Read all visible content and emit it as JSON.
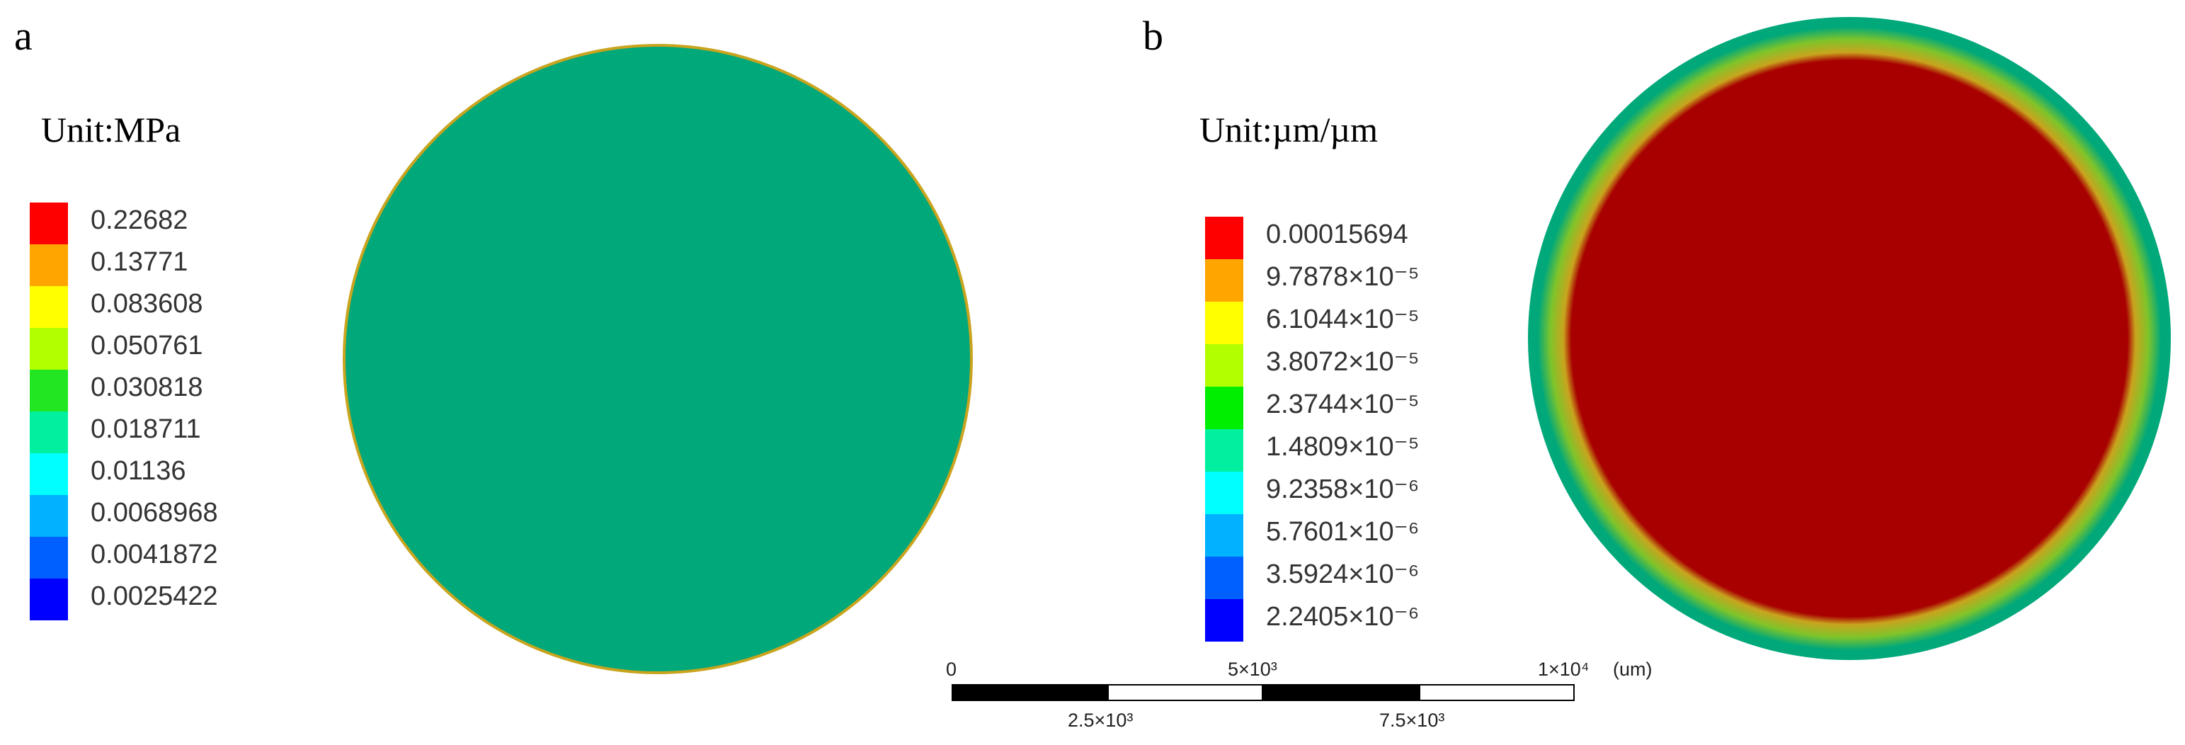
{
  "panel_a": {
    "label": "a",
    "unit": "Unit:MPa",
    "legend": [
      {
        "value": "0.22682",
        "color": "#ff0000"
      },
      {
        "value": "0.13771",
        "color": "#ffa500"
      },
      {
        "value": "0.083608",
        "color": "#ffff00"
      },
      {
        "value": "0.050761",
        "color": "#b2ff00"
      },
      {
        "value": "0.030818",
        "color": "#22e622"
      },
      {
        "value": "0.018711",
        "color": "#00f0a0"
      },
      {
        "value": "0.01136",
        "color": "#00ffff"
      },
      {
        "value": "0.0068968",
        "color": "#00b2ff"
      },
      {
        "value": "0.0041872",
        "color": "#0060ff"
      },
      {
        "value": "0.0025422",
        "color": "#0000ff"
      }
    ],
    "disk_color": "#00a87a",
    "rim_color": "#c9a41e"
  },
  "panel_b": {
    "label": "b",
    "unit": "Unit:µm/µm",
    "legend": [
      {
        "value": "0.00015694",
        "color": "#ff0000"
      },
      {
        "value": "9.7878×10⁻⁵",
        "color": "#ffa500"
      },
      {
        "value": "6.1044×10⁻⁵",
        "color": "#ffff00"
      },
      {
        "value": "3.8072×10⁻⁵",
        "color": "#b2ff00"
      },
      {
        "value": "2.3744×10⁻⁵",
        "color": "#00ee00"
      },
      {
        "value": "1.4809×10⁻⁵",
        "color": "#00f0a0"
      },
      {
        "value": "9.2358×10⁻⁶",
        "color": "#00ffff"
      },
      {
        "value": "5.7601×10⁻⁶",
        "color": "#00b2ff"
      },
      {
        "value": "3.5924×10⁻⁶",
        "color": "#0060ff"
      },
      {
        "value": "2.2405×10⁻⁶",
        "color": "#0000ff"
      }
    ],
    "disk_core_color": "#a80000",
    "disk_ring_colors": [
      "#c9a41e",
      "#7fc42a",
      "#00a87a"
    ]
  },
  "scale_bar": {
    "top_labels": [
      "0",
      "5×10³",
      "1×10⁴"
    ],
    "unit": "(um)",
    "bottom_labels": [
      "2.5×10³",
      "7.5×10³"
    ]
  }
}
